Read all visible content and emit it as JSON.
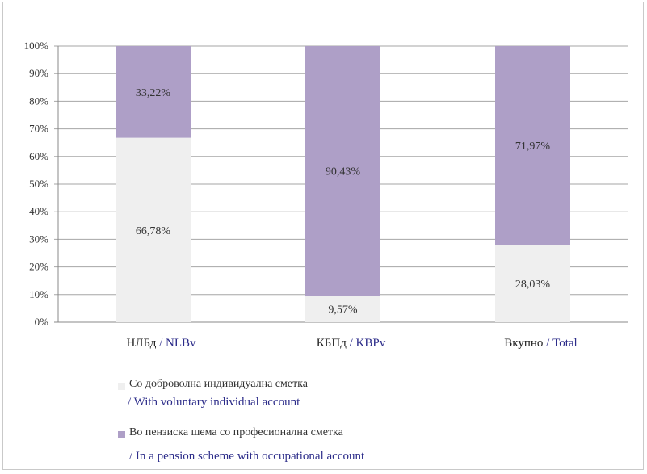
{
  "chart_data": {
    "type": "bar",
    "stacked": true,
    "percent_stacked": true,
    "ylim": [
      0,
      100
    ],
    "yticks": [
      "0%",
      "10%",
      "20%",
      "30%",
      "40%",
      "50%",
      "60%",
      "70%",
      "80%",
      "90%",
      "100%"
    ],
    "grid": true,
    "categories": [
      {
        "label": "НЛБд",
        "label_en": "/ NLBv"
      },
      {
        "label": "КБПд",
        "label_en": "/ KBPv"
      },
      {
        "label": "Вкупно",
        "label_en": "/ Total"
      }
    ],
    "series": [
      {
        "name": "Со доброволна индивидуална сметка",
        "name_en": "/ With voluntary individual account",
        "color": "#efefef",
        "values": [
          66.78,
          9.57,
          28.03
        ],
        "labels": [
          "66,78%",
          "9,57%",
          "28,03%"
        ]
      },
      {
        "name": "Во пензиска шема со професионална сметка",
        "name_en": "/ In a pension scheme with occupational account",
        "color": "#ae9fc7",
        "values": [
          33.22,
          90.43,
          71.97
        ],
        "labels": [
          "33,22%",
          "90,43%",
          "71,97%"
        ]
      }
    ],
    "legend_position": "bottom"
  }
}
